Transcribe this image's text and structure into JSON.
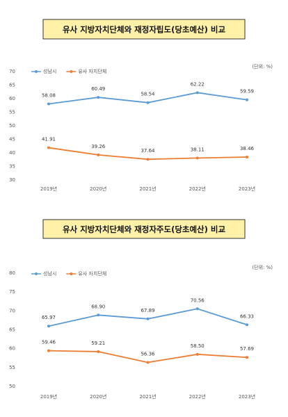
{
  "chart_data": [
    {
      "type": "line",
      "title": "유사 지방자치단체와 재정자립도(당초예산) 비교",
      "unit": "(단위: %)",
      "categories": [
        "2019년",
        "2020년",
        "2021년",
        "2022년",
        "2023년"
      ],
      "series": [
        {
          "name": "성남시",
          "color": "#5b9bd5",
          "values": [
            58.08,
            60.49,
            58.54,
            62.22,
            59.59
          ],
          "value_labels": [
            "58.08",
            "60.49",
            "58.54",
            "62.22",
            "59.59"
          ]
        },
        {
          "name": "유사 자치단체",
          "color": "#ed7d31",
          "values": [
            41.91,
            39.26,
            37.64,
            38.11,
            38.46
          ],
          "value_labels": [
            "41.91",
            "39.26",
            "37.64",
            "38.11",
            "38.46"
          ]
        }
      ],
      "ylim": [
        30,
        70
      ],
      "yticks": [
        30,
        35,
        40,
        45,
        50,
        55,
        60,
        65,
        70
      ],
      "grid": false,
      "legend": "top-left"
    },
    {
      "type": "line",
      "title": "유사 지방자치단체와 재정자주도(당초예산) 비교",
      "unit": "(단위: %)",
      "categories": [
        "2019년",
        "2020년",
        "2021년",
        "2022년",
        "2023년"
      ],
      "series": [
        {
          "name": "성남시",
          "color": "#5b9bd5",
          "values": [
            65.97,
            68.9,
            67.89,
            70.56,
            66.33
          ],
          "value_labels": [
            "65.97",
            "68.90",
            "67.89",
            "70.56",
            "66.33"
          ]
        },
        {
          "name": "유사 자치단체",
          "color": "#ed7d31",
          "values": [
            59.46,
            59.21,
            56.36,
            58.5,
            57.69
          ],
          "value_labels": [
            "59.46",
            "59.21",
            "56.36",
            "58.50",
            "57.69"
          ]
        }
      ],
      "ylim": [
        50,
        80
      ],
      "yticks": [
        50,
        55,
        60,
        65,
        70,
        75,
        80
      ],
      "grid": false,
      "legend": "top-left"
    }
  ]
}
